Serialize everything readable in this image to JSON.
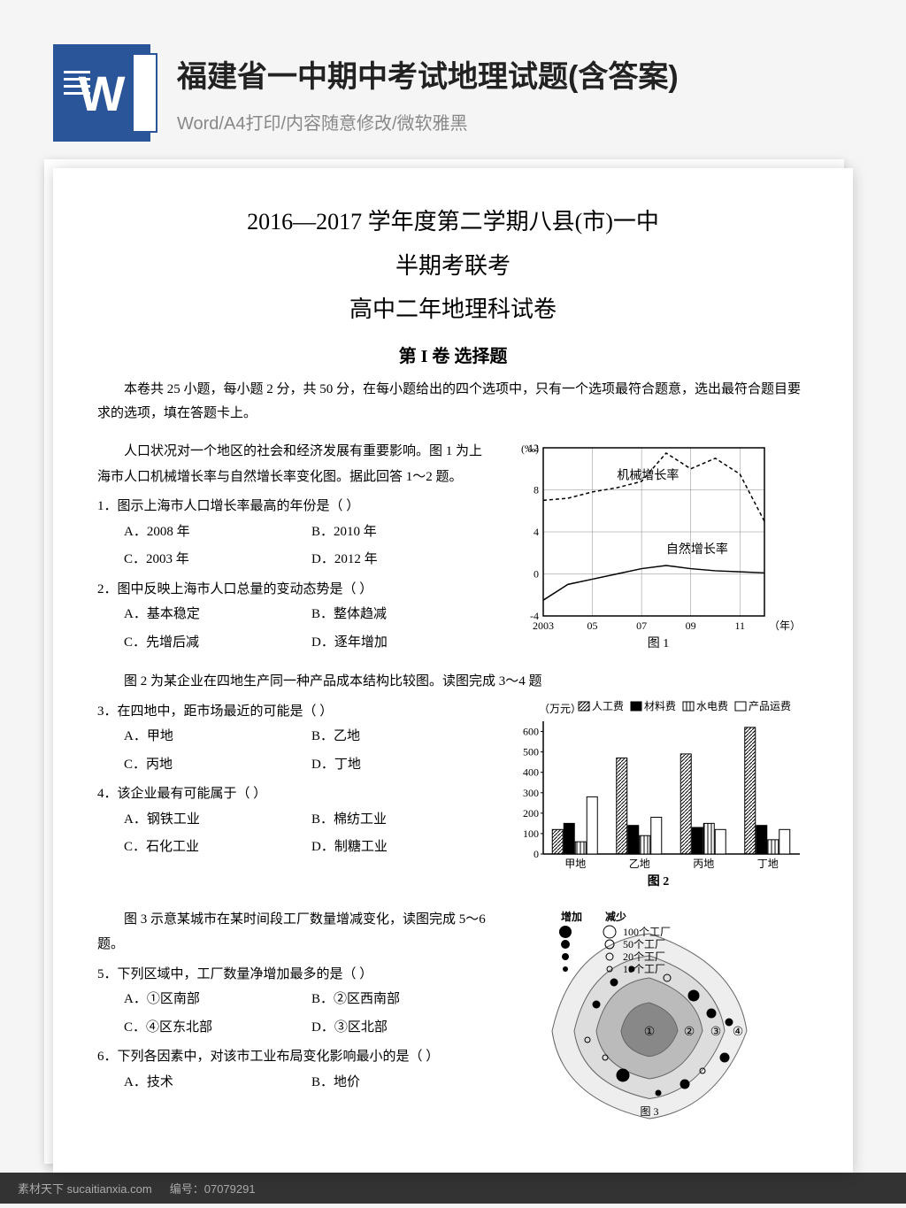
{
  "header": {
    "icon_letter": "W",
    "title": "福建省一中期中考试地理试题(含答案)",
    "subtitle": "Word/A4打印/内容随意修改/微软雅黑"
  },
  "document": {
    "title_line1": "2016—2017 学年度第二学期八县(市)一中",
    "title_line2": "半期考联考",
    "title_line3": "高中二年地理科试卷",
    "section_title": "第 I 卷  选择题",
    "instructions": "本卷共 25 小题，每小题 2 分，共 50 分，在每小题给出的四个选项中，只有一个选项最符合题意，选出最符合题目要求的选项，填在答题卡上。",
    "block1": {
      "intro": "人口状况对一个地区的社会和经济发展有重要影响。图 1 为上海市人口机械增长率与自然增长率变化图。据此回答 1～2 题。",
      "q1": "1．图示上海市人口增长率最高的年份是（  ）",
      "q1_opts": [
        "A．2008 年",
        "B．2010 年",
        "C．2003 年",
        "D．2012 年"
      ],
      "q2": "2．图中反映上海市人口总量的变动态势是（  ）",
      "q2_opts": [
        "A．基本稳定",
        "B．整体趋减",
        "C．先增后减",
        "D．逐年增加"
      ]
    },
    "chart1": {
      "ylabel": "(‰)",
      "xlabel": "（年）",
      "caption": "图 1",
      "label1": "机械增长率",
      "label2": "自然增长率",
      "x_ticks": [
        "2003",
        "05",
        "07",
        "09",
        "11"
      ],
      "y_ticks": [
        "-4",
        "0",
        "4",
        "8",
        "12"
      ],
      "ylim": [
        -4,
        12
      ],
      "xlim": [
        2003,
        2012
      ],
      "line1_data": [
        [
          2003,
          7
        ],
        [
          2004,
          7.2
        ],
        [
          2005,
          7.8
        ],
        [
          2006,
          8.2
        ],
        [
          2007,
          8.8
        ],
        [
          2008,
          11.5
        ],
        [
          2009,
          10
        ],
        [
          2010,
          11
        ],
        [
          2011,
          9.5
        ],
        [
          2012,
          5
        ]
      ],
      "line2_data": [
        [
          2003,
          -2.5
        ],
        [
          2004,
          -1
        ],
        [
          2005,
          -0.5
        ],
        [
          2006,
          0
        ],
        [
          2007,
          0.5
        ],
        [
          2008,
          0.8
        ],
        [
          2009,
          0.5
        ],
        [
          2010,
          0.3
        ],
        [
          2011,
          0.2
        ],
        [
          2012,
          0.1
        ]
      ],
      "line_color": "#000",
      "grid_color": "#888",
      "bg_color": "#fff"
    },
    "block2": {
      "intro": "图 2 为某企业在四地生产同一种产品成本结构比较图。读图完成 3～4 题",
      "q3": "3．在四地中，距市场最近的可能是（  ）",
      "q3_opts": [
        "A．甲地",
        "B．乙地",
        "C．丙地",
        "D．丁地"
      ],
      "q4": "4．该企业最有可能属于（  ）",
      "q4_opts": [
        "A．钢铁工业",
        "B．棉纺工业",
        "C．石化工业",
        "D．制糖工业"
      ]
    },
    "chart2": {
      "ylabel": "（万元）",
      "caption": "图 2",
      "legend": [
        "人工费",
        "材料费",
        "水电费",
        "产品运费"
      ],
      "categories": [
        "甲地",
        "乙地",
        "丙地",
        "丁地"
      ],
      "y_ticks": [
        "0",
        "100",
        "200",
        "300",
        "400",
        "500",
        "600"
      ],
      "ylim": [
        0,
        650
      ],
      "data": {
        "甲地": [
          120,
          150,
          60,
          280
        ],
        "乙地": [
          470,
          140,
          90,
          180
        ],
        "丙地": [
          490,
          130,
          150,
          120
        ],
        "丁地": [
          620,
          140,
          70,
          120
        ]
      },
      "patterns": [
        "hatch",
        "black",
        "stripe",
        "white"
      ],
      "bar_color": "#000"
    },
    "block3": {
      "intro": "图 3 示意某城市在某时间段工厂数量增减变化，读图完成 5～6 题。",
      "q5": "5．下列区域中，工厂数量净增加最多的是（  ）",
      "q5_opts": [
        "A．①区南部",
        "B．②区西南部",
        "C．④区东北部",
        "D．③区北部"
      ],
      "q6": "6．下列各因素中，对该市工业布局变化影响最小的是（  ）",
      "q6_opts": [
        "A．技术",
        "B．地价"
      ]
    },
    "chart3": {
      "caption": "图 3",
      "legend_title_add": "增加",
      "legend_title_sub": "减少",
      "legend_items": [
        "100个工厂",
        "50个工厂",
        "20个工厂",
        "10个工厂"
      ],
      "zones": [
        "①",
        "②",
        "③",
        "④"
      ],
      "fill_colors": [
        "#888",
        "#bbb",
        "#ddd",
        "#eee"
      ]
    }
  },
  "footer": {
    "brand": "素材天下 sucaitianxia.com",
    "code_label": "编号：",
    "code": "07079291"
  }
}
